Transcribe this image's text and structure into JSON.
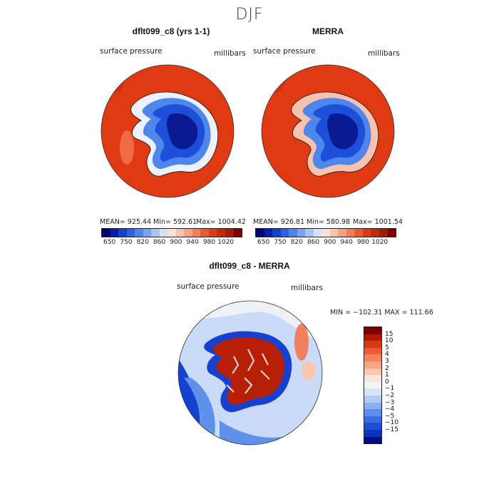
{
  "figure": {
    "title": "DJF"
  },
  "panel_left": {
    "title": "dflt099_c8 (yrs 1-1)",
    "variable": "surface pressure",
    "units": "millibars",
    "mean_label": "MEAN= 925.44",
    "min_label": "Min= 592.61",
    "max_label": "Max= 1004.42"
  },
  "panel_right": {
    "title": "MERRA",
    "variable": "surface pressure",
    "units": "millibars",
    "mean_label": "MEAN= 926.81",
    "min_label": "Min= 580.98",
    "max_label": "Max= 1001.54"
  },
  "panel_diff": {
    "title": "dflt099_c8 - MERRA",
    "variable": "surface pressure",
    "units": "millibars",
    "minmax_label": "MIN = −102.31  MAX = 111.66"
  },
  "colorbar_abs": {
    "colors": [
      "#00007f",
      "#0a1fa8",
      "#1342cc",
      "#2a62e0",
      "#4f84ec",
      "#7aa3f2",
      "#a8c4f7",
      "#d5e2fb",
      "#fbe0d6",
      "#f7c2ae",
      "#f4a283",
      "#f07f59",
      "#ea5a33",
      "#dd3a15",
      "#c42a0a",
      "#a51c06",
      "#800000"
    ],
    "ticks": [
      "650",
      "750",
      "820",
      "860",
      "900",
      "940",
      "980",
      "1020"
    ],
    "tick_positions": [
      1,
      3,
      5,
      7,
      9,
      11,
      13,
      15
    ]
  },
  "colorbar_diff": {
    "colors": [
      "#800000",
      "#b01a05",
      "#d63a12",
      "#ee5a30",
      "#f4825c",
      "#f6a684",
      "#f8c7b0",
      "#fbe4d8",
      "#f4f4f4",
      "#d7e4fa",
      "#b0caf5",
      "#8aaef0",
      "#5e8cea",
      "#3a6ce2",
      "#1c4ed8",
      "#0d33bd",
      "#000a8a"
    ],
    "ticks": [
      "15",
      "10",
      "5",
      "4",
      "3",
      "2",
      "1",
      "0",
      "−1",
      "−2",
      "−3",
      "−4",
      "−5",
      "−10",
      "−15"
    ]
  },
  "map_colors": {
    "ocean": "#e03a12",
    "ocean_dark": "#c92c08",
    "ice_deep": "#0a1a92",
    "ice_mid": "#1e4fd8",
    "ice_light": "#4f86ec",
    "shelf": "#ecf1fb",
    "diff_neg_light": "#c9dbf8",
    "diff_neg_mid": "#5f90ea",
    "diff_neg_deep": "#1540d0",
    "diff_pos_light": "#f7c7b0",
    "diff_pos_mid": "#f08060",
    "diff_pos_deep": "#b72006",
    "diff_zero": "#f7f7f7"
  }
}
